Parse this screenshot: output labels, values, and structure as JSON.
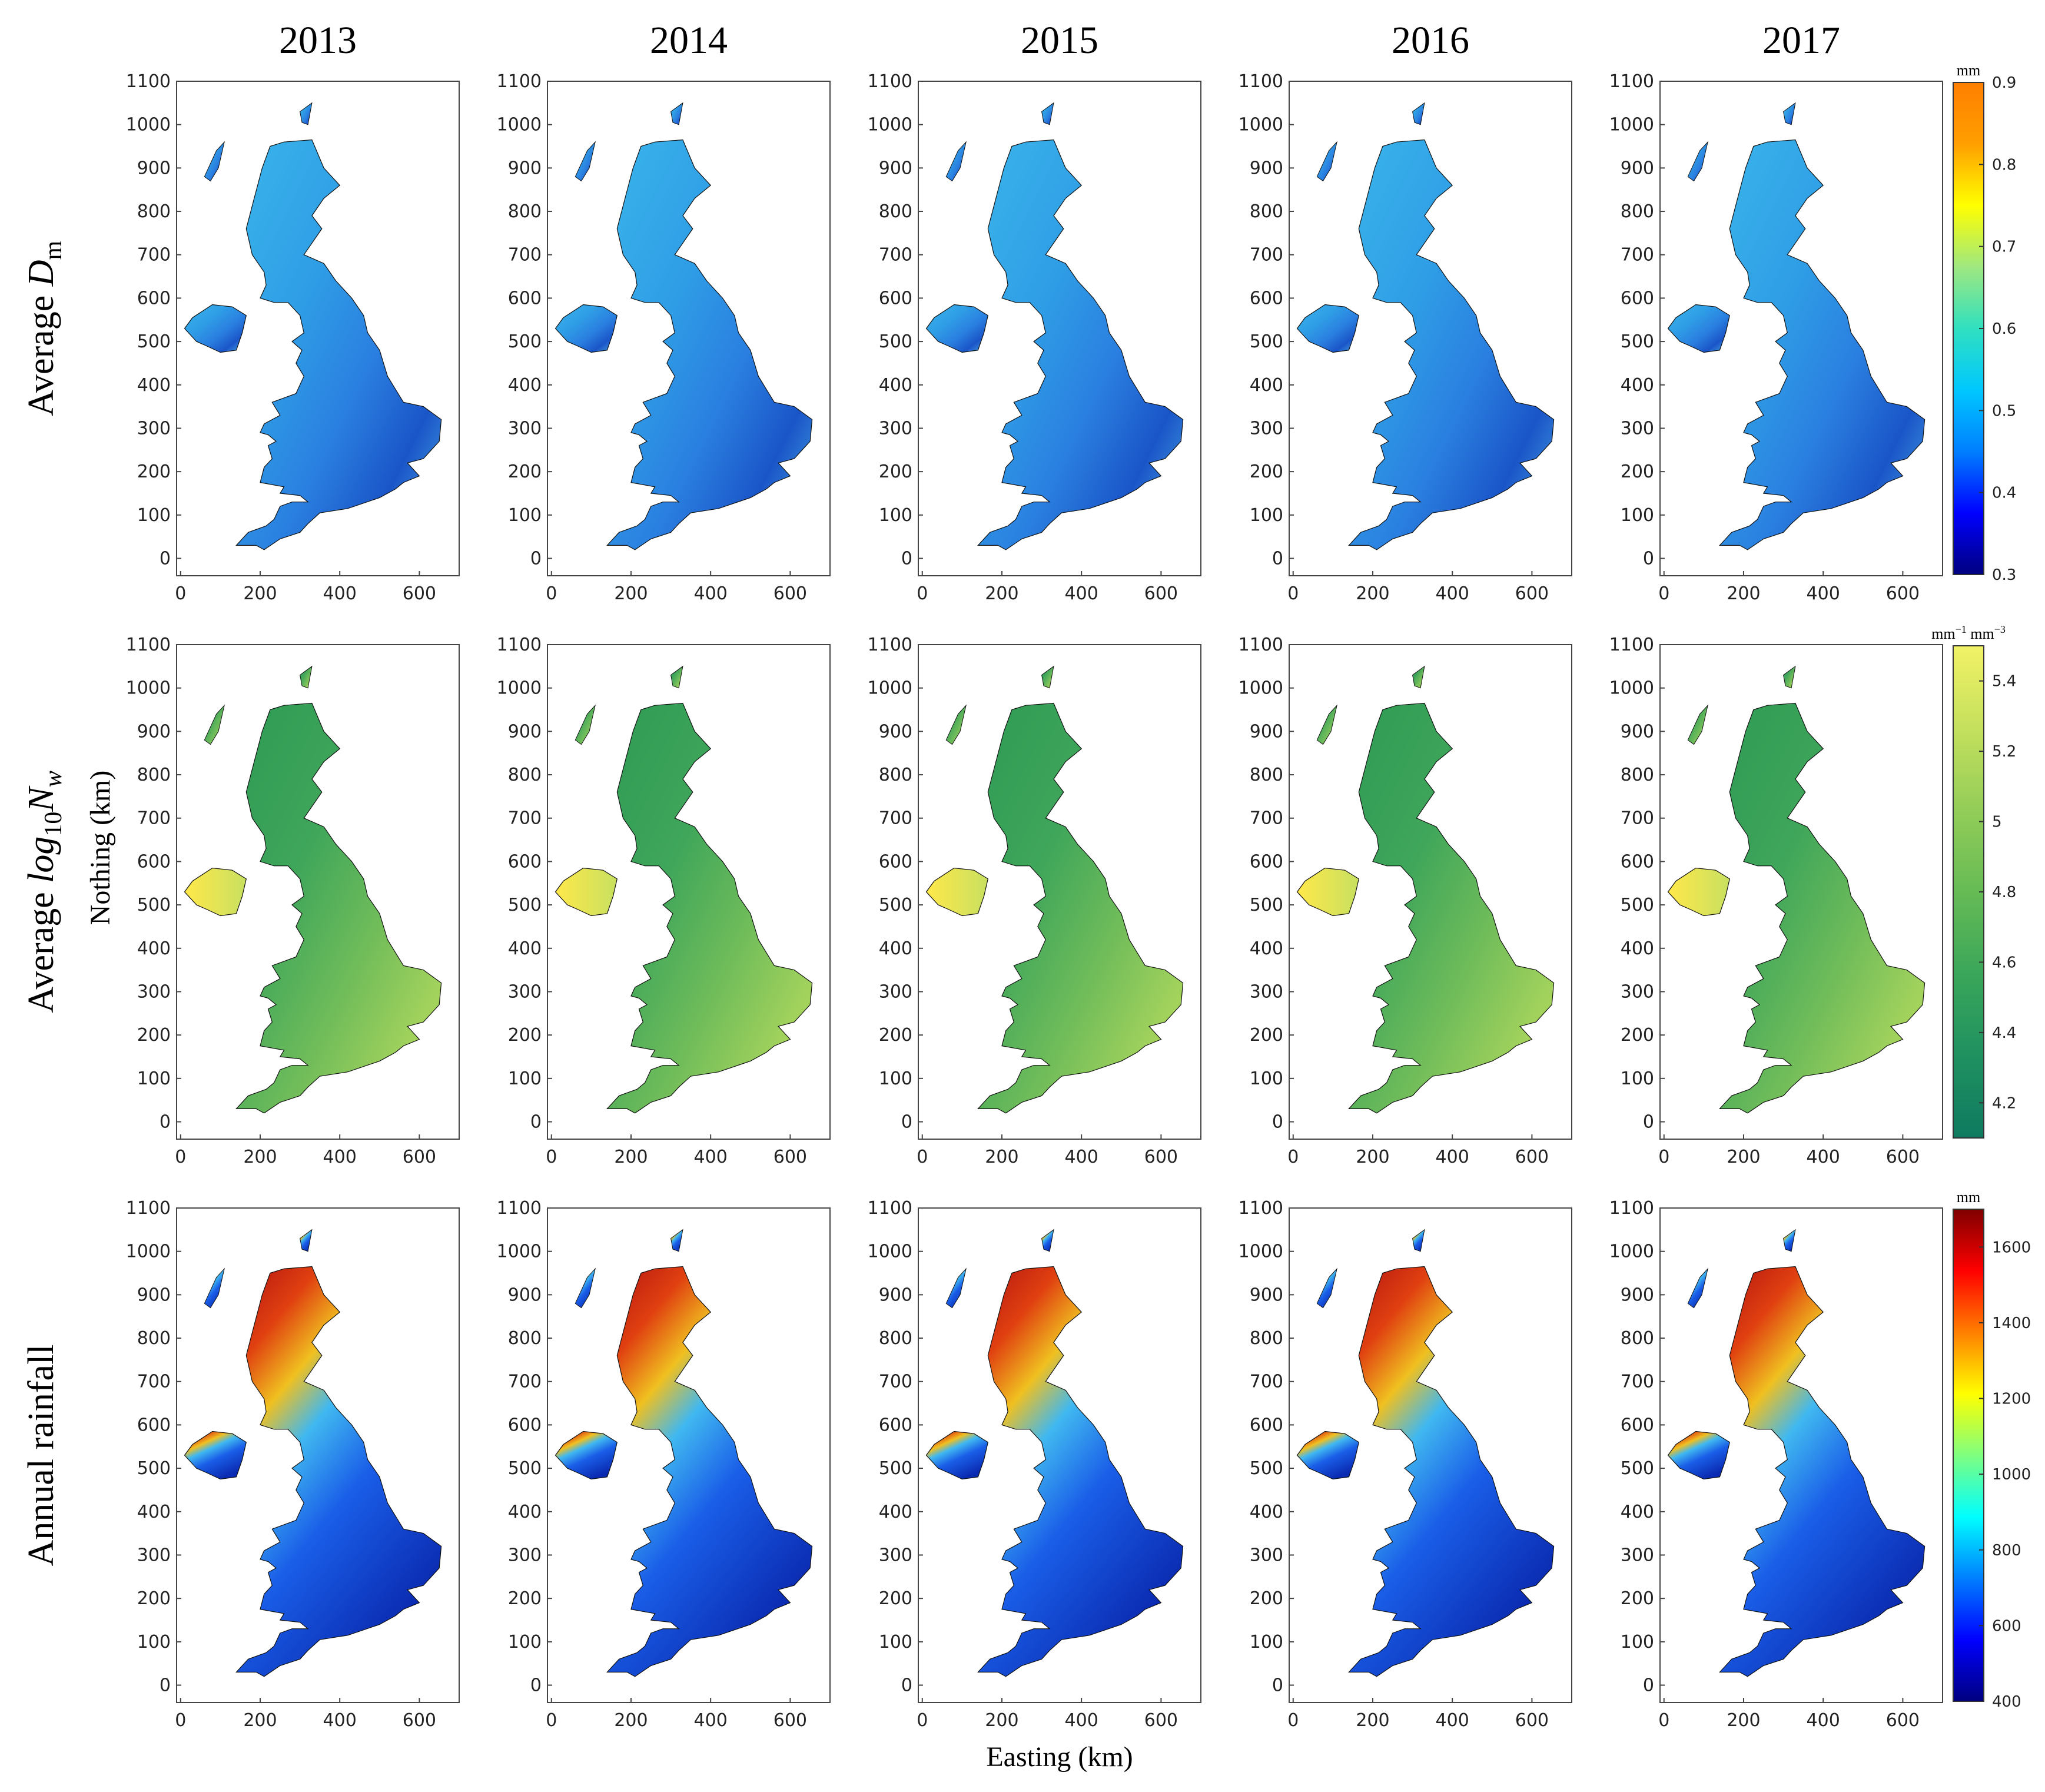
{
  "years": [
    "2013",
    "2014",
    "2015",
    "2016",
    "2017"
  ],
  "rows": [
    {
      "label_main": "Average ",
      "label_var": "D",
      "label_sub": "m",
      "label_sup": "",
      "colorbar": {
        "unit": "mm",
        "min": 0.3,
        "max": 0.9,
        "ticks": [
          "0.3",
          "0.4",
          "0.5",
          "0.6",
          "0.7",
          "0.8",
          "0.9"
        ],
        "colormap": "jet-reversed"
      }
    },
    {
      "label_main": "Average ",
      "label_var": "log",
      "label_sub": "10",
      "label_var2": "N",
      "label_sub2": "w",
      "colorbar": {
        "unit_a": "mm",
        "unit_a_sup": "−1",
        "unit_b": "mm",
        "unit_b_sup": "−3",
        "min": 4.1,
        "max": 5.5,
        "ticks": [
          "4.2",
          "4.4",
          "4.6",
          "4.8",
          "5",
          "5.2",
          "5.4"
        ],
        "colormap": "summer-reversed"
      }
    },
    {
      "label_main": "Annual rainfall",
      "colorbar": {
        "unit": "mm",
        "min": 400,
        "max": 1700,
        "ticks": [
          "400",
          "600",
          "800",
          "1000",
          "1200",
          "1400",
          "1600"
        ],
        "colormap": "jet"
      }
    }
  ],
  "y_axis": {
    "label": "Nothing (km)",
    "ticks": [
      "0",
      "100",
      "200",
      "300",
      "400",
      "500",
      "600",
      "700",
      "800",
      "900",
      "1000",
      "1100"
    ],
    "range": [
      -40,
      1100
    ]
  },
  "x_axis": {
    "label": "Easting (km)",
    "ticks": [
      "0",
      "200",
      "400",
      "600"
    ],
    "range": [
      -10,
      700
    ]
  },
  "colors": {
    "dm_base": "#2f8fe0",
    "nw_base": "#4ea850",
    "rain_base": "#1a4fd8"
  }
}
